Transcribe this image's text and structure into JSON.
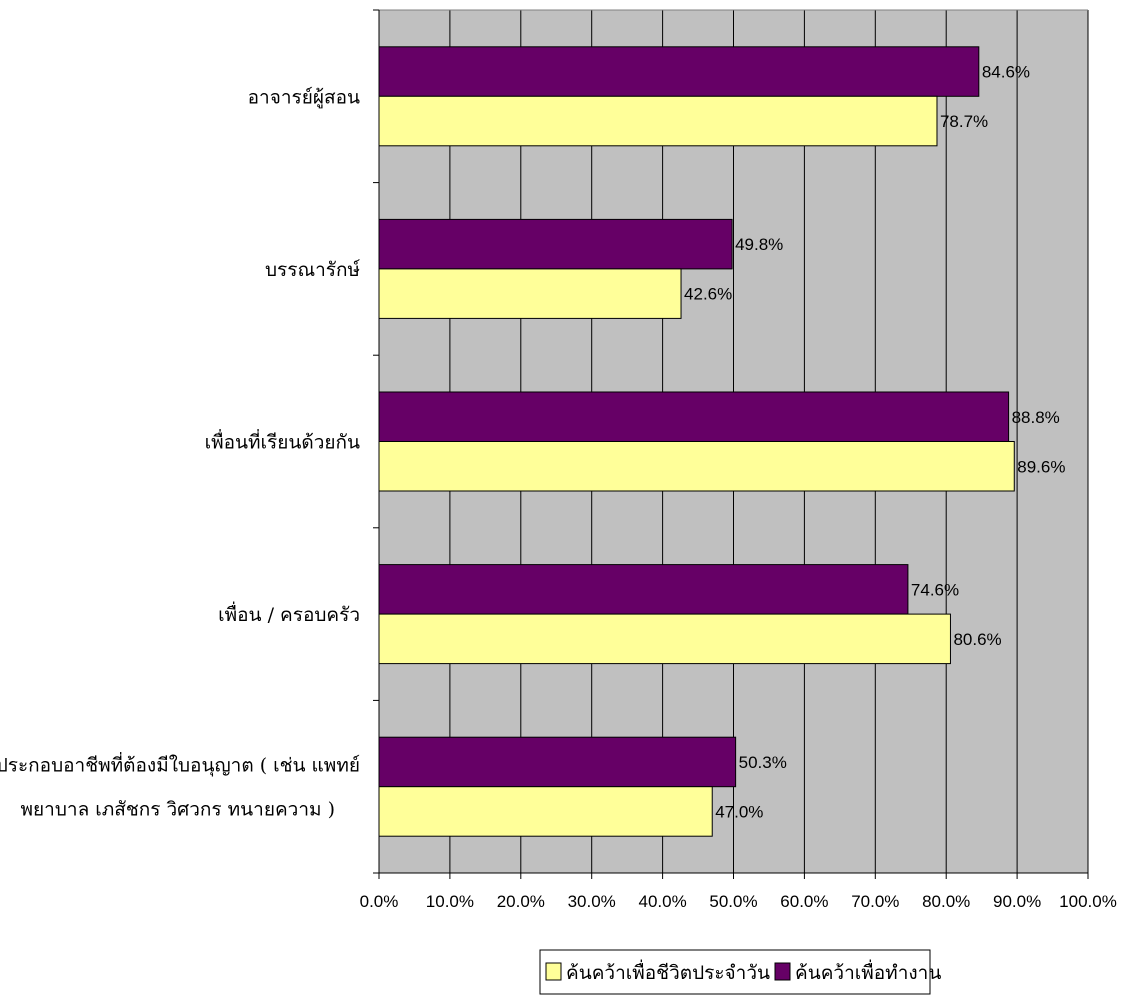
{
  "chart_data": {
    "type": "bar",
    "orientation": "horizontal",
    "categories": [
      [
        "อาจารย์ผู้สอน"
      ],
      [
        "บรรณารักษ์"
      ],
      [
        "เพื่อนที่เรียนด้วยกัน"
      ],
      [
        "เพื่อน / ครอบครัว"
      ],
      [
        "ผู้ประกอบอาชีพที่ต้องมีใบอนุญาต ( เช่น แพทย์",
        "พยาบาล  เภสัชกร  วิศวกร  ทนายความ  )"
      ]
    ],
    "series": [
      {
        "name": "ค้นคว้าเพื่อทำงาน",
        "color": "#660066",
        "values": [
          84.6,
          49.8,
          88.8,
          74.6,
          50.3
        ],
        "labels": [
          "84.6%",
          "49.8%",
          "88.8%",
          "74.6%",
          "50.3%"
        ]
      },
      {
        "name": "ค้นคว้าเพื่อชีวิตประจำวัน",
        "color": "#FFFF99",
        "values": [
          78.7,
          42.6,
          89.6,
          80.6,
          47.0
        ],
        "labels": [
          "78.7%",
          "42.6%",
          "89.6%",
          "80.6%",
          "47.0%"
        ]
      }
    ],
    "xlim": [
      0,
      100
    ],
    "xticks": [
      "0.0%",
      "10.0%",
      "20.0%",
      "30.0%",
      "40.0%",
      "50.0%",
      "60.0%",
      "70.0%",
      "80.0%",
      "90.0%",
      "100.0%"
    ],
    "plot_background": "#C0C0C0",
    "grid": true,
    "legend": {
      "placement": "bottom",
      "items": [
        {
          "label": "ค้นคว้าเพื่อชีวิตประจำวัน",
          "color": "#FFFF99"
        },
        {
          "label": "ค้นคว้าเพื่อทำงาน",
          "color": "#660066"
        }
      ]
    }
  }
}
